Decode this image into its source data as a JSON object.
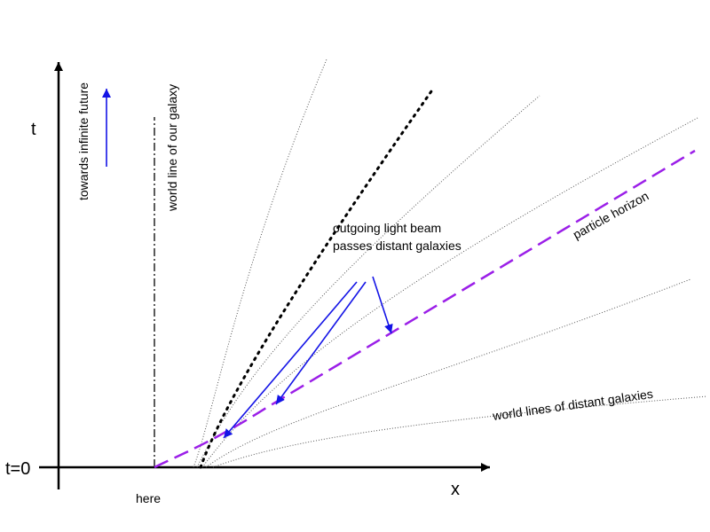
{
  "labels": {
    "t_axis": "t",
    "x_axis": "x",
    "t_zero": "t=0",
    "here": "here",
    "towards_future": "towards infinite future",
    "our_world_line": "world line of our galaxy",
    "outgoing_beam_line1": "outgoing light beam",
    "outgoing_beam_line2": "passes distant galaxies",
    "particle_horizon": "particle horizon",
    "distant_world_lines": "world lines of distant galaxies"
  },
  "colors": {
    "axes": "#000000",
    "arrows": "#1414e6",
    "particle_horizon": "#9b1fe8",
    "world_lines": "#555555",
    "light_beam": "#000000"
  }
}
